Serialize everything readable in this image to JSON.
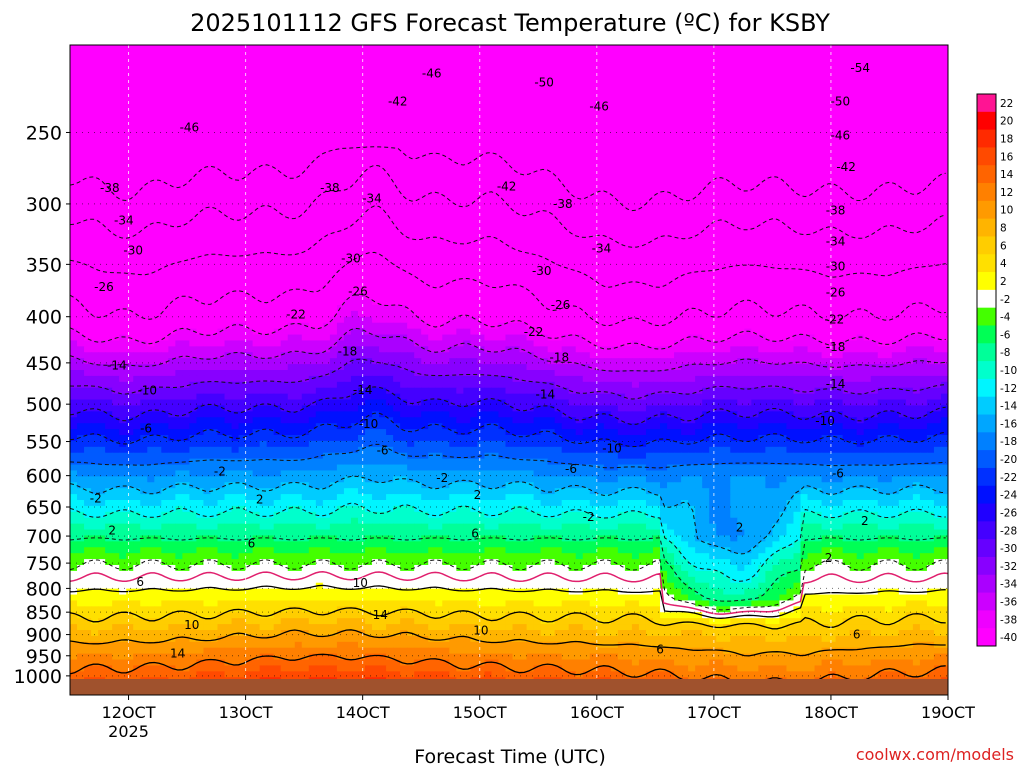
{
  "chart_data": {
    "type": "heatmap",
    "title": "2025101112 GFS Forecast Temperature (ºC) for KSBY",
    "xlabel": "Forecast Time (UTC)",
    "ylabel": "",
    "credit": "coolwx.com/models",
    "x_unit": "forecast hour",
    "x_range": [
      115,
      190
    ],
    "x_ticks": [
      {
        "x": 120,
        "label": "12OCT",
        "sublabel": "2025"
      },
      {
        "x": 130,
        "label": "13OCT",
        "sublabel": ""
      },
      {
        "x": 140,
        "label": "14OCT",
        "sublabel": ""
      },
      {
        "x": 150,
        "label": "15OCT",
        "sublabel": ""
      },
      {
        "x": 160,
        "label": "16OCT",
        "sublabel": ""
      },
      {
        "x": 170,
        "label": "17OCT",
        "sublabel": ""
      },
      {
        "x": 180,
        "label": "18OCT",
        "sublabel": ""
      },
      {
        "x": 190,
        "label": "19OCT",
        "sublabel": ""
      }
    ],
    "y_unit": "hPa",
    "y_scale": "log",
    "y_range": [
      1050,
      200
    ],
    "y_ticks": [
      250,
      300,
      350,
      400,
      450,
      500,
      550,
      600,
      650,
      700,
      750,
      800,
      850,
      900,
      950,
      1000
    ],
    "colorbar": {
      "labels": [
        22,
        20,
        18,
        16,
        14,
        12,
        10,
        8,
        6,
        4,
        2,
        -2,
        -4,
        -6,
        -8,
        -10,
        -12,
        -14,
        -16,
        -18,
        -20,
        -22,
        -24,
        -26,
        -28,
        -30,
        -32,
        -34,
        -36,
        -38,
        -40
      ],
      "colors": [
        "#ff1493",
        "#ff0000",
        "#ff2a00",
        "#ff4a00",
        "#ff6400",
        "#ff8000",
        "#ff9a00",
        "#ffb400",
        "#ffcd00",
        "#ffe000",
        "#ffff00",
        "#ffffff",
        "#44ff00",
        "#00ff55",
        "#00ff99",
        "#00ffcc",
        "#00f5ff",
        "#00ccff",
        "#00a6ff",
        "#0080ff",
        "#005aff",
        "#0030ff",
        "#0010ff",
        "#2000ff",
        "#4400ff",
        "#6600ff",
        "#8800ff",
        "#aa00ff",
        "#cc00ff",
        "#ee00ff",
        "#ff00ff"
      ]
    },
    "isotherms": [
      {
        "value": -54,
        "label": "-54",
        "x": 182.5,
        "p": 212
      },
      {
        "value": -50,
        "label": "-50",
        "x": 155.5,
        "p": 220
      },
      {
        "value": -50,
        "label": "-50",
        "x": 180.8,
        "p": 231
      },
      {
        "value": -46,
        "label": "-46",
        "x": 145.9,
        "p": 215
      },
      {
        "value": -46,
        "label": "-46",
        "x": 160.2,
        "p": 234
      },
      {
        "value": -46,
        "label": "-46",
        "x": 125.2,
        "p": 247
      },
      {
        "value": -46,
        "label": "-46",
        "x": 180.8,
        "p": 252
      },
      {
        "value": -42,
        "label": "-42",
        "x": 143.0,
        "p": 231
      },
      {
        "value": -42,
        "label": "-42",
        "x": 181.3,
        "p": 273
      },
      {
        "value": -42,
        "label": "-42",
        "x": 152.3,
        "p": 287
      },
      {
        "value": -38,
        "label": "-38",
        "x": 118.4,
        "p": 288
      },
      {
        "value": -38,
        "label": "-38",
        "x": 137.2,
        "p": 288
      },
      {
        "value": -38,
        "label": "-38",
        "x": 157.1,
        "p": 300
      },
      {
        "value": -38,
        "label": "-38",
        "x": 180.4,
        "p": 305
      },
      {
        "value": -34,
        "label": "-34",
        "x": 140.8,
        "p": 296
      },
      {
        "value": -34,
        "label": "-34",
        "x": 119.6,
        "p": 313
      },
      {
        "value": -34,
        "label": "-34",
        "x": 160.4,
        "p": 336
      },
      {
        "value": -34,
        "label": "-34",
        "x": 180.4,
        "p": 330
      },
      {
        "value": -30,
        "label": "-30",
        "x": 120.4,
        "p": 338
      },
      {
        "value": -30,
        "label": "-30",
        "x": 139.0,
        "p": 345
      },
      {
        "value": -30,
        "label": "-30",
        "x": 155.3,
        "p": 356
      },
      {
        "value": -30,
        "label": "-30",
        "x": 180.4,
        "p": 352
      },
      {
        "value": -26,
        "label": "-26",
        "x": 117.9,
        "p": 371
      },
      {
        "value": -26,
        "label": "-26",
        "x": 139.6,
        "p": 375
      },
      {
        "value": -26,
        "label": "-26",
        "x": 156.9,
        "p": 388
      },
      {
        "value": -26,
        "label": "-26",
        "x": 180.4,
        "p": 376
      },
      {
        "value": -22,
        "label": "-22",
        "x": 134.3,
        "p": 398
      },
      {
        "value": -22,
        "label": "-22",
        "x": 154.6,
        "p": 416
      },
      {
        "value": -22,
        "label": "-22",
        "x": 180.3,
        "p": 403
      },
      {
        "value": -18,
        "label": "-18",
        "x": 138.7,
        "p": 437
      },
      {
        "value": -18,
        "label": "-18",
        "x": 156.8,
        "p": 444
      },
      {
        "value": -18,
        "label": "-18",
        "x": 180.4,
        "p": 432
      },
      {
        "value": -14,
        "label": "-14",
        "x": 119.0,
        "p": 453
      },
      {
        "value": -14,
        "label": "-14",
        "x": 140.0,
        "p": 482
      },
      {
        "value": -14,
        "label": "-14",
        "x": 155.6,
        "p": 488
      },
      {
        "value": -14,
        "label": "-14",
        "x": 180.4,
        "p": 475
      },
      {
        "value": -10,
        "label": "-10",
        "x": 121.6,
        "p": 483
      },
      {
        "value": -10,
        "label": "-10",
        "x": 140.5,
        "p": 526
      },
      {
        "value": -10,
        "label": "-10",
        "x": 161.3,
        "p": 560
      },
      {
        "value": -10,
        "label": "-10",
        "x": 179.5,
        "p": 522
      },
      {
        "value": -6,
        "label": "-6",
        "x": 121.5,
        "p": 532
      },
      {
        "value": -6,
        "label": "-6",
        "x": 141.7,
        "p": 563
      },
      {
        "value": -6,
        "label": "-6",
        "x": 157.8,
        "p": 590
      },
      {
        "value": -6,
        "label": "-6",
        "x": 180.6,
        "p": 597
      },
      {
        "value": -2,
        "label": "-2",
        "x": 127.8,
        "p": 594
      },
      {
        "value": -2,
        "label": "-2",
        "x": 146.8,
        "p": 604
      },
      {
        "value": -2,
        "label": "-2",
        "x": 117.2,
        "p": 636
      },
      {
        "value": -2,
        "label": "-2",
        "x": 159.3,
        "p": 667
      },
      {
        "value": 2,
        "label": "2",
        "x": 131.2,
        "p": 638
      },
      {
        "value": 2,
        "label": "2",
        "x": 149.8,
        "p": 630
      },
      {
        "value": 2,
        "label": "2",
        "x": 118.6,
        "p": 690
      },
      {
        "value": 2,
        "label": "2",
        "x": 172.2,
        "p": 685
      },
      {
        "value": 2,
        "label": "2",
        "x": 182.9,
        "p": 674
      },
      {
        "value": 2,
        "label": "2",
        "x": 179.8,
        "p": 740
      },
      {
        "value": 6,
        "label": "6",
        "x": 130.5,
        "p": 713
      },
      {
        "value": 6,
        "label": "6",
        "x": 149.6,
        "p": 695
      },
      {
        "value": 6,
        "label": "6",
        "x": 121.0,
        "p": 787
      },
      {
        "value": 6,
        "label": "6",
        "x": 165.4,
        "p": 935
      },
      {
        "value": 6,
        "label": "6",
        "x": 182.2,
        "p": 900
      },
      {
        "value": 10,
        "label": "10",
        "x": 139.8,
        "p": 789
      },
      {
        "value": 10,
        "label": "10",
        "x": 125.4,
        "p": 878
      },
      {
        "value": 10,
        "label": "10",
        "x": 150.1,
        "p": 891
      },
      {
        "value": 14,
        "label": "14",
        "x": 141.5,
        "p": 856
      },
      {
        "value": 14,
        "label": "14",
        "x": 124.2,
        "p": 945
      }
    ]
  }
}
